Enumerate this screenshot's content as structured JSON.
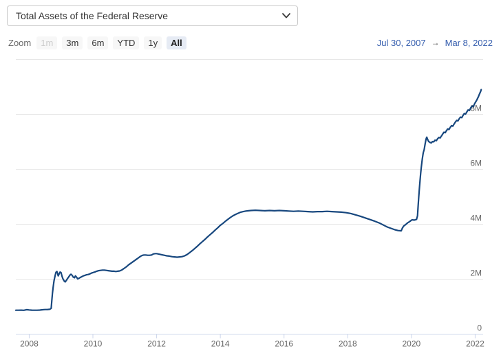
{
  "select": {
    "value": "Total Assets of the Federal Reserve"
  },
  "range_selector": {
    "zoom_label": "Zoom",
    "buttons": [
      {
        "label": "1m",
        "state": "disabled"
      },
      {
        "label": "3m",
        "state": "normal"
      },
      {
        "label": "6m",
        "state": "normal"
      },
      {
        "label": "YTD",
        "state": "normal"
      },
      {
        "label": "1y",
        "state": "normal"
      },
      {
        "label": "All",
        "state": "selected"
      }
    ],
    "date_from": "Jul 30, 2007",
    "date_arrow": "→",
    "date_to": "Mar 8, 2022"
  },
  "colors": {
    "series_line": "#17477e",
    "date_text": "#335cad",
    "gridline": "#e6e6e6",
    "axis_line": "#ccd6eb",
    "tick_mark": "#ccd6eb",
    "axis_label": "#666666",
    "button_bg": "#f7f7f7",
    "button_selected_bg": "#e6ebf4",
    "button_disabled_text": "#cccccc"
  },
  "chart_data": {
    "type": "line",
    "title": "Total Assets of the Federal Reserve",
    "series_name": "Total Assets of the Federal Reserve",
    "units": "millions of US dollars",
    "legend": false,
    "grid": true,
    "xlim": [
      2007.58,
      2022.25
    ],
    "ylim": [
      0,
      10000000
    ],
    "x_ticks": [
      {
        "v": 2008,
        "label": "2008"
      },
      {
        "v": 2010,
        "label": "2010"
      },
      {
        "v": 2012,
        "label": "2012"
      },
      {
        "v": 2014,
        "label": "2014"
      },
      {
        "v": 2016,
        "label": "2016"
      },
      {
        "v": 2018,
        "label": "2018"
      },
      {
        "v": 2020,
        "label": "2020"
      },
      {
        "v": 2022,
        "label": "2022"
      }
    ],
    "y_ticks": [
      {
        "v": 0,
        "label": "0"
      },
      {
        "v": 2000000,
        "label": "2M"
      },
      {
        "v": 4000000,
        "label": "4M"
      },
      {
        "v": 6000000,
        "label": "6M"
      },
      {
        "v": 8000000,
        "label": "8M"
      },
      {
        "v": 10000000,
        "label": ""
      }
    ],
    "points": [
      [
        2007.58,
        870000
      ],
      [
        2007.66,
        869000
      ],
      [
        2007.75,
        872000
      ],
      [
        2007.83,
        868000
      ],
      [
        2007.92,
        891000
      ],
      [
        2008.0,
        879000
      ],
      [
        2008.08,
        873000
      ],
      [
        2008.17,
        870000
      ],
      [
        2008.25,
        869000
      ],
      [
        2008.33,
        875000
      ],
      [
        2008.42,
        888000
      ],
      [
        2008.5,
        894000
      ],
      [
        2008.58,
        898000
      ],
      [
        2008.65,
        905000
      ],
      [
        2008.69,
        940000
      ],
      [
        2008.71,
        1220000
      ],
      [
        2008.73,
        1480000
      ],
      [
        2008.75,
        1700000
      ],
      [
        2008.78,
        1940000
      ],
      [
        2008.81,
        2110000
      ],
      [
        2008.84,
        2250000
      ],
      [
        2008.87,
        2280000
      ],
      [
        2008.89,
        2210000
      ],
      [
        2008.91,
        2120000
      ],
      [
        2008.94,
        2190000
      ],
      [
        2008.97,
        2260000
      ],
      [
        2009.0,
        2240000
      ],
      [
        2009.03,
        2110000
      ],
      [
        2009.06,
        2010000
      ],
      [
        2009.1,
        1930000
      ],
      [
        2009.13,
        1900000
      ],
      [
        2009.17,
        1960000
      ],
      [
        2009.2,
        2020000
      ],
      [
        2009.24,
        2080000
      ],
      [
        2009.28,
        2150000
      ],
      [
        2009.31,
        2180000
      ],
      [
        2009.35,
        2140000
      ],
      [
        2009.38,
        2080000
      ],
      [
        2009.42,
        2050000
      ],
      [
        2009.45,
        2120000
      ],
      [
        2009.49,
        2070000
      ],
      [
        2009.52,
        2010000
      ],
      [
        2009.56,
        2030000
      ],
      [
        2009.6,
        2060000
      ],
      [
        2009.65,
        2090000
      ],
      [
        2009.7,
        2120000
      ],
      [
        2009.75,
        2140000
      ],
      [
        2009.8,
        2160000
      ],
      [
        2009.85,
        2170000
      ],
      [
        2009.9,
        2190000
      ],
      [
        2009.95,
        2220000
      ],
      [
        2010.0,
        2240000
      ],
      [
        2010.06,
        2260000
      ],
      [
        2010.12,
        2290000
      ],
      [
        2010.18,
        2310000
      ],
      [
        2010.24,
        2320000
      ],
      [
        2010.3,
        2330000
      ],
      [
        2010.36,
        2330000
      ],
      [
        2010.42,
        2320000
      ],
      [
        2010.48,
        2310000
      ],
      [
        2010.54,
        2300000
      ],
      [
        2010.6,
        2290000
      ],
      [
        2010.66,
        2290000
      ],
      [
        2010.72,
        2280000
      ],
      [
        2010.78,
        2290000
      ],
      [
        2010.84,
        2300000
      ],
      [
        2010.9,
        2330000
      ],
      [
        2010.95,
        2370000
      ],
      [
        2011.0,
        2410000
      ],
      [
        2011.06,
        2460000
      ],
      [
        2011.12,
        2520000
      ],
      [
        2011.18,
        2570000
      ],
      [
        2011.24,
        2620000
      ],
      [
        2011.3,
        2670000
      ],
      [
        2011.36,
        2720000
      ],
      [
        2011.42,
        2770000
      ],
      [
        2011.48,
        2820000
      ],
      [
        2011.52,
        2850000
      ],
      [
        2011.56,
        2870000
      ],
      [
        2011.6,
        2880000
      ],
      [
        2011.66,
        2880000
      ],
      [
        2011.72,
        2870000
      ],
      [
        2011.78,
        2870000
      ],
      [
        2011.84,
        2880000
      ],
      [
        2011.9,
        2920000
      ],
      [
        2011.96,
        2930000
      ],
      [
        2012.0,
        2930000
      ],
      [
        2012.08,
        2910000
      ],
      [
        2012.16,
        2890000
      ],
      [
        2012.24,
        2870000
      ],
      [
        2012.32,
        2850000
      ],
      [
        2012.4,
        2840000
      ],
      [
        2012.48,
        2820000
      ],
      [
        2012.56,
        2810000
      ],
      [
        2012.64,
        2800000
      ],
      [
        2012.72,
        2810000
      ],
      [
        2012.8,
        2820000
      ],
      [
        2012.88,
        2850000
      ],
      [
        2012.96,
        2900000
      ],
      [
        2013.04,
        2970000
      ],
      [
        2013.12,
        3040000
      ],
      [
        2013.2,
        3120000
      ],
      [
        2013.28,
        3200000
      ],
      [
        2013.36,
        3290000
      ],
      [
        2013.44,
        3370000
      ],
      [
        2013.52,
        3450000
      ],
      [
        2013.6,
        3540000
      ],
      [
        2013.68,
        3620000
      ],
      [
        2013.76,
        3700000
      ],
      [
        2013.84,
        3790000
      ],
      [
        2013.92,
        3870000
      ],
      [
        2014.0,
        3960000
      ],
      [
        2014.08,
        4030000
      ],
      [
        2014.16,
        4110000
      ],
      [
        2014.24,
        4180000
      ],
      [
        2014.32,
        4250000
      ],
      [
        2014.4,
        4310000
      ],
      [
        2014.48,
        4360000
      ],
      [
        2014.56,
        4400000
      ],
      [
        2014.64,
        4440000
      ],
      [
        2014.72,
        4460000
      ],
      [
        2014.8,
        4480000
      ],
      [
        2014.88,
        4490000
      ],
      [
        2014.96,
        4500000
      ],
      [
        2015.1,
        4510000
      ],
      [
        2015.25,
        4500000
      ],
      [
        2015.4,
        4490000
      ],
      [
        2015.55,
        4500000
      ],
      [
        2015.7,
        4490000
      ],
      [
        2015.85,
        4500000
      ],
      [
        2016.0,
        4490000
      ],
      [
        2016.15,
        4480000
      ],
      [
        2016.3,
        4470000
      ],
      [
        2016.45,
        4480000
      ],
      [
        2016.6,
        4470000
      ],
      [
        2016.75,
        4460000
      ],
      [
        2016.9,
        4450000
      ],
      [
        2017.05,
        4460000
      ],
      [
        2017.2,
        4460000
      ],
      [
        2017.35,
        4470000
      ],
      [
        2017.5,
        4460000
      ],
      [
        2017.65,
        4450000
      ],
      [
        2017.8,
        4440000
      ],
      [
        2017.95,
        4420000
      ],
      [
        2018.1,
        4390000
      ],
      [
        2018.25,
        4340000
      ],
      [
        2018.4,
        4290000
      ],
      [
        2018.55,
        4230000
      ],
      [
        2018.7,
        4170000
      ],
      [
        2018.85,
        4110000
      ],
      [
        2019.0,
        4040000
      ],
      [
        2019.12,
        3970000
      ],
      [
        2019.24,
        3900000
      ],
      [
        2019.36,
        3850000
      ],
      [
        2019.48,
        3800000
      ],
      [
        2019.58,
        3770000
      ],
      [
        2019.68,
        3760000
      ],
      [
        2019.72,
        3870000
      ],
      [
        2019.76,
        3940000
      ],
      [
        2019.8,
        3970000
      ],
      [
        2019.84,
        4010000
      ],
      [
        2019.88,
        4050000
      ],
      [
        2019.92,
        4080000
      ],
      [
        2019.96,
        4110000
      ],
      [
        2020.0,
        4150000
      ],
      [
        2020.04,
        4160000
      ],
      [
        2020.08,
        4150000
      ],
      [
        2020.12,
        4160000
      ],
      [
        2020.16,
        4180000
      ],
      [
        2020.19,
        4310000
      ],
      [
        2020.21,
        4670000
      ],
      [
        2020.23,
        5000000
      ],
      [
        2020.25,
        5300000
      ],
      [
        2020.27,
        5600000
      ],
      [
        2020.29,
        5860000
      ],
      [
        2020.31,
        6080000
      ],
      [
        2020.34,
        6370000
      ],
      [
        2020.37,
        6600000
      ],
      [
        2020.4,
        6720000
      ],
      [
        2020.43,
        6930000
      ],
      [
        2020.46,
        7100000
      ],
      [
        2020.48,
        7170000
      ],
      [
        2020.51,
        7080000
      ],
      [
        2020.54,
        7010000
      ],
      [
        2020.58,
        6980000
      ],
      [
        2020.62,
        6960000
      ],
      [
        2020.66,
        7010000
      ],
      [
        2020.7,
        7000000
      ],
      [
        2020.74,
        7060000
      ],
      [
        2020.78,
        7040000
      ],
      [
        2020.82,
        7110000
      ],
      [
        2020.86,
        7160000
      ],
      [
        2020.9,
        7140000
      ],
      [
        2020.94,
        7210000
      ],
      [
        2020.98,
        7280000
      ],
      [
        2021.02,
        7350000
      ],
      [
        2021.06,
        7330000
      ],
      [
        2021.1,
        7410000
      ],
      [
        2021.14,
        7470000
      ],
      [
        2021.18,
        7450000
      ],
      [
        2021.22,
        7530000
      ],
      [
        2021.26,
        7590000
      ],
      [
        2021.3,
        7570000
      ],
      [
        2021.34,
        7650000
      ],
      [
        2021.38,
        7720000
      ],
      [
        2021.42,
        7780000
      ],
      [
        2021.46,
        7760000
      ],
      [
        2021.5,
        7840000
      ],
      [
        2021.54,
        7900000
      ],
      [
        2021.58,
        7880000
      ],
      [
        2021.62,
        7960000
      ],
      [
        2021.66,
        8030000
      ],
      [
        2021.7,
        8010000
      ],
      [
        2021.74,
        8090000
      ],
      [
        2021.78,
        8160000
      ],
      [
        2021.82,
        8140000
      ],
      [
        2021.86,
        8230000
      ],
      [
        2021.9,
        8300000
      ],
      [
        2021.94,
        8280000
      ],
      [
        2021.98,
        8380000
      ],
      [
        2022.02,
        8460000
      ],
      [
        2022.06,
        8540000
      ],
      [
        2022.1,
        8640000
      ],
      [
        2022.13,
        8720000
      ],
      [
        2022.16,
        8800000
      ],
      [
        2022.18,
        8860000
      ],
      [
        2022.19,
        8900000
      ]
    ]
  }
}
